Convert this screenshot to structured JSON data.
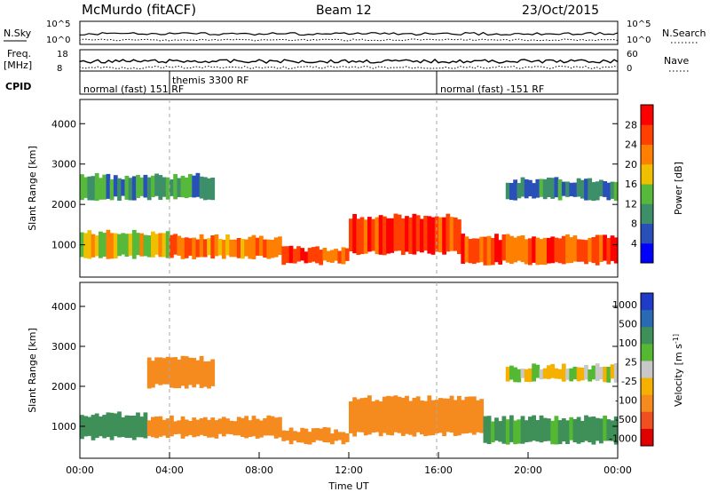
{
  "header": {
    "title": "McMurdo (fitACF)",
    "beam": "Beam 12",
    "date": "23/Oct/2015"
  },
  "summary_panel": {
    "nsky_label": "N.Sky",
    "nsearch_label": "N.Search",
    "count_ticks": [
      "10^5",
      "10^0"
    ],
    "freq_label": "Freq.",
    "freq_unit": "[MHz]",
    "freq_ticks": [
      "18",
      "8"
    ],
    "nave_label": "Nave",
    "nave_ticks": [
      "60",
      "0"
    ],
    "cpid_label": "CPID",
    "cpid_segments": [
      {
        "label": "normal (fast) 151 RF",
        "start_hour": 0.0
      },
      {
        "label": "themis 3300 RF",
        "start_hour": 4.0
      },
      {
        "label": "normal (fast) -151 RF",
        "start_hour": 16.0
      }
    ]
  },
  "colors": {
    "power_scale": [
      "#0000ff",
      "#2950b8",
      "#3d8f6a",
      "#57b93c",
      "#f0c000",
      "#ff8000",
      "#ff4000",
      "#ff0000"
    ],
    "velocity_scale": [
      "#1e3cc8",
      "#2a6ab4",
      "#3f8f58",
      "#55b833",
      "#c8c8c8",
      "#f5b000",
      "#f58a1e",
      "#f05020",
      "#e00000"
    ]
  },
  "chart_data": [
    {
      "type": "heatmap",
      "variable": "Power",
      "ylabel": "Slant Range [km]",
      "yticks": [
        "1000",
        "2000",
        "3000",
        "4000"
      ],
      "ylim": [
        200,
        4600
      ],
      "colorbar_label": "Power [dB]",
      "colorbar_ticks": [
        "4",
        "8",
        "12",
        "16",
        "20",
        "24",
        "28"
      ],
      "grid": false,
      "bands": [
        {
          "start_hour": 0.0,
          "end_hour": 4.0,
          "range_km": [
            700,
            1300
          ],
          "value": 18
        },
        {
          "start_hour": 4.0,
          "end_hour": 9.0,
          "range_km": [
            700,
            1200
          ],
          "value": 22
        },
        {
          "start_hour": 9.0,
          "end_hour": 12.0,
          "range_km": [
            550,
            900
          ],
          "value": 24
        },
        {
          "start_hour": 12.0,
          "end_hour": 17.0,
          "range_km": [
            800,
            1700
          ],
          "value": 26
        },
        {
          "start_hour": 17.0,
          "end_hour": 24.0,
          "range_km": [
            550,
            1200
          ],
          "value": 24
        },
        {
          "start_hour": 0.0,
          "end_hour": 6.0,
          "range_km": [
            2150,
            2700
          ],
          "value": 12
        },
        {
          "start_hour": 19.0,
          "end_hour": 24.0,
          "range_km": [
            2150,
            2600
          ],
          "value": 10
        }
      ]
    },
    {
      "type": "heatmap",
      "variable": "Velocity",
      "ylabel": "Slant Range [km]",
      "yticks": [
        "1000",
        "2000",
        "3000",
        "4000"
      ],
      "ylim": [
        200,
        4600
      ],
      "xticks": [
        "00:00",
        "04:00",
        "08:00",
        "12:00",
        "16:00",
        "20:00",
        "00:00"
      ],
      "xlabel": "Time UT",
      "colorbar_label": "Velocity [m s^-1]",
      "colorbar_ticks": [
        "1000",
        "500",
        "100",
        "25",
        "-25",
        "-100",
        "-500",
        "-1000"
      ],
      "grid": false,
      "bands": [
        {
          "start_hour": 0.0,
          "end_hour": 3.0,
          "range_km": [
            700,
            1300
          ],
          "value": 200
        },
        {
          "start_hour": 3.0,
          "end_hour": 9.0,
          "range_km": [
            750,
            1200
          ],
          "value": -200
        },
        {
          "start_hour": 9.0,
          "end_hour": 12.0,
          "range_km": [
            600,
            900
          ],
          "value": -200
        },
        {
          "start_hour": 12.0,
          "end_hour": 18.0,
          "range_km": [
            800,
            1700
          ],
          "value": -250
        },
        {
          "start_hour": 18.0,
          "end_hour": 24.0,
          "range_km": [
            600,
            1200
          ],
          "value": 150
        },
        {
          "start_hour": 3.0,
          "end_hour": 6.0,
          "range_km": [
            2000,
            2700
          ],
          "value": -250
        },
        {
          "start_hour": 19.0,
          "end_hour": 24.0,
          "range_km": [
            2150,
            2500
          ],
          "value": 10
        }
      ]
    }
  ]
}
